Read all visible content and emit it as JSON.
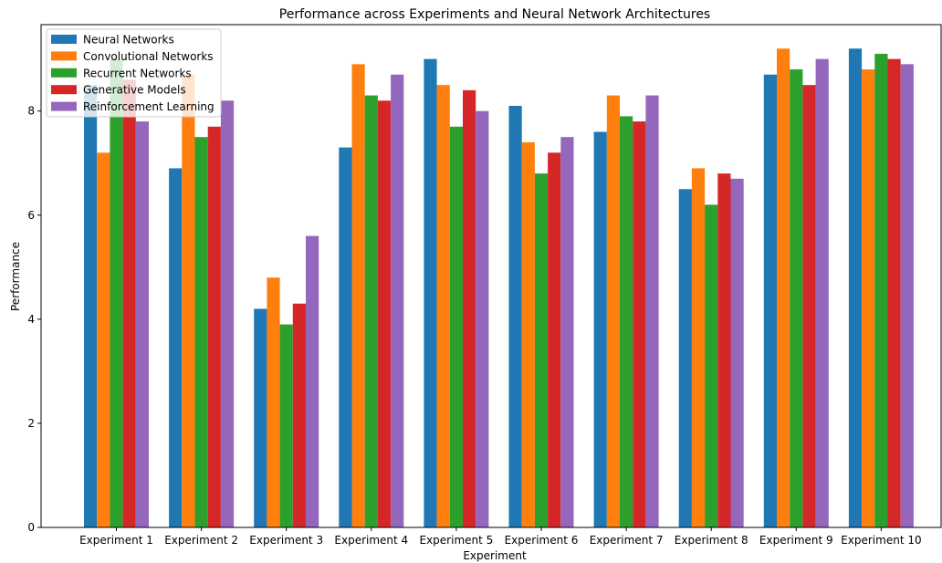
{
  "chart_data": {
    "type": "bar",
    "title": "Performance across Experiments and Neural Network Architectures",
    "xlabel": "Experiment",
    "ylabel": "Performance",
    "ylim": [
      0,
      9.66
    ],
    "yticks": [
      0,
      2,
      4,
      6,
      8
    ],
    "grid": false,
    "legend_position": "top-left",
    "categories": [
      "Experiment 1",
      "Experiment 2",
      "Experiment 3",
      "Experiment 4",
      "Experiment 5",
      "Experiment 6",
      "Experiment 7",
      "Experiment 8",
      "Experiment 9",
      "Experiment 10"
    ],
    "series": [
      {
        "name": "Neural Networks",
        "color": "#1f77b4",
        "values": [
          8.5,
          6.9,
          4.2,
          7.3,
          9.0,
          8.1,
          7.6,
          6.5,
          8.7,
          9.2
        ]
      },
      {
        "name": "Convolutional Networks",
        "color": "#ff7f0e",
        "values": [
          7.2,
          8.7,
          4.8,
          8.9,
          8.5,
          7.4,
          8.3,
          6.9,
          9.2,
          8.8
        ]
      },
      {
        "name": "Recurrent Networks",
        "color": "#2ca02c",
        "values": [
          9.0,
          7.5,
          3.9,
          8.3,
          7.7,
          6.8,
          7.9,
          6.2,
          8.8,
          9.1
        ]
      },
      {
        "name": "Generative Models",
        "color": "#d62728",
        "values": [
          8.6,
          7.7,
          4.3,
          8.2,
          8.4,
          7.2,
          7.8,
          6.8,
          8.5,
          9.0
        ]
      },
      {
        "name": "Reinforcement Learning",
        "color": "#9467bd",
        "values": [
          7.8,
          8.2,
          5.6,
          8.7,
          8.0,
          7.5,
          8.3,
          6.7,
          9.0,
          8.9
        ]
      }
    ]
  }
}
